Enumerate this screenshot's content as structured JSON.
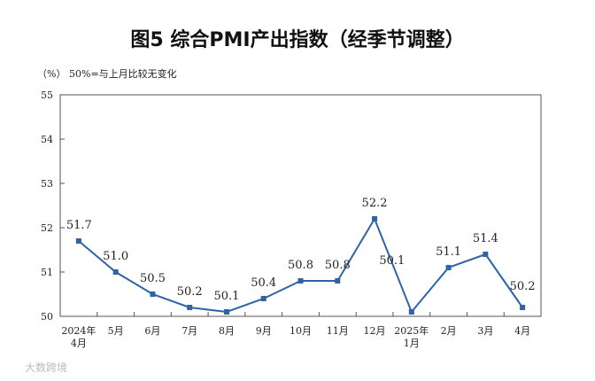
{
  "watermark": "大数跨境",
  "chart_data": {
    "type": "line",
    "title": "图5  综合PMI产出指数（经季节调整）",
    "unit_label": "（%）",
    "note": "50%=与上月比较无变化",
    "categories": [
      [
        "2024年",
        "4月"
      ],
      [
        "5月"
      ],
      [
        "6月"
      ],
      [
        "7月"
      ],
      [
        "8月"
      ],
      [
        "9月"
      ],
      [
        "10月"
      ],
      [
        "11月"
      ],
      [
        "12月"
      ],
      [
        "2025年",
        "1月"
      ],
      [
        "2月"
      ],
      [
        "3月"
      ],
      [
        "4月"
      ]
    ],
    "series": [
      {
        "values": [
          51.7,
          51.0,
          50.5,
          50.2,
          50.1,
          50.4,
          50.8,
          50.8,
          52.2,
          50.1,
          51.1,
          51.4,
          50.2
        ],
        "labels": [
          "51.7",
          "51.0",
          "50.5",
          "50.2",
          "50.1",
          "50.4",
          "50.8",
          "50.8",
          "52.2",
          "50.1",
          "51.1",
          "51.4",
          "50.2"
        ],
        "color": "#2e64a6"
      }
    ],
    "ylim": [
      50,
      55
    ],
    "yticks": [
      50,
      51,
      52,
      53,
      54,
      55
    ],
    "ytick_labels": [
      "50",
      "51",
      "52",
      "53",
      "54",
      "55"
    ],
    "grid": false,
    "legend": "none"
  }
}
